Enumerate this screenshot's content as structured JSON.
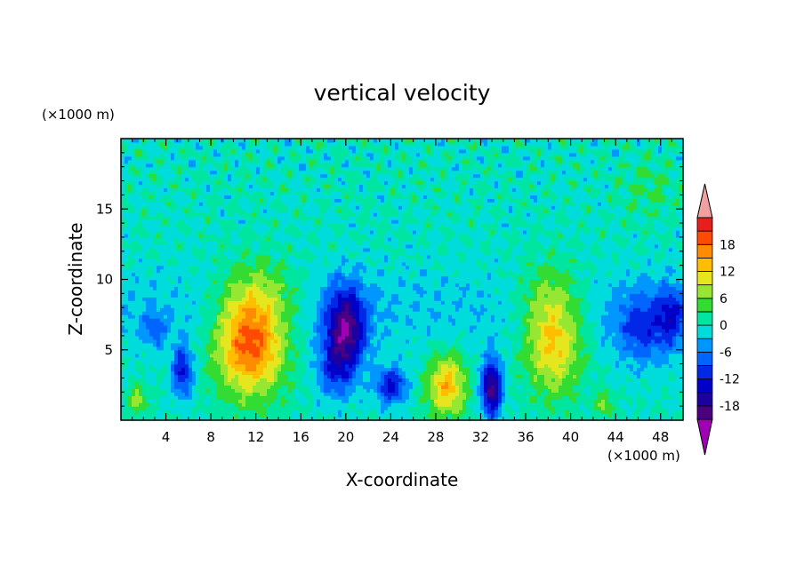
{
  "chart_data": {
    "type": "heatmap",
    "title": "vertical velocity",
    "xlabel": "X-coordinate",
    "ylabel": "Z-coordinate",
    "x_unit": "(×1000 m)",
    "y_unit": "(×1000 m)",
    "xlim": [
      0,
      50
    ],
    "ylim": [
      0,
      20
    ],
    "x_ticks": [
      4,
      8,
      12,
      16,
      20,
      24,
      28,
      32,
      36,
      40,
      44,
      48
    ],
    "y_ticks": [
      5,
      10,
      15
    ],
    "colorbar": {
      "levels": [
        -21,
        -18,
        -15,
        -12,
        -9,
        -6,
        -3,
        0,
        3,
        6,
        9,
        12,
        15,
        18,
        21
      ],
      "tick_labels": [
        -18,
        -12,
        -6,
        0,
        6,
        12,
        18
      ],
      "colors": [
        "#4b0082",
        "#1c00a0",
        "#0000c8",
        "#0028e6",
        "#0064ff",
        "#0096ff",
        "#00dcdc",
        "#00e6a0",
        "#32dc32",
        "#96e632",
        "#e6e61e",
        "#ffbe00",
        "#ff8c00",
        "#ff4b00",
        "#e61e1e"
      ],
      "over_color": "#f0a0a0",
      "under_color": "#a000b4",
      "extends": "both"
    },
    "features": [
      {
        "x": 11.5,
        "z": 5.5,
        "sx": 3.0,
        "sz": 3.5,
        "w": 20
      },
      {
        "x": 12.5,
        "z": 9.0,
        "sx": 3.5,
        "sz": 2.5,
        "w": 6
      },
      {
        "x": 20.0,
        "z": 6.5,
        "sx": 1.8,
        "sz": 3.0,
        "w": -19
      },
      {
        "x": 19.0,
        "z": 3.5,
        "sx": 1.5,
        "sz": 2.0,
        "w": -8
      },
      {
        "x": 24.0,
        "z": 2.5,
        "sx": 1.4,
        "sz": 1.3,
        "w": -13
      },
      {
        "x": 29.0,
        "z": 2.5,
        "sx": 1.7,
        "sz": 2.2,
        "w": 14
      },
      {
        "x": 33.0,
        "z": 2.3,
        "sx": 0.9,
        "sz": 2.0,
        "w": -20
      },
      {
        "x": 38.5,
        "z": 5.5,
        "sx": 2.5,
        "sz": 3.5,
        "w": 13
      },
      {
        "x": 38.0,
        "z": 9.0,
        "sx": 3.0,
        "sz": 2.5,
        "w": 5
      },
      {
        "x": 5.5,
        "z": 3.5,
        "sx": 0.9,
        "sz": 1.8,
        "w": -13
      },
      {
        "x": 46.5,
        "z": 6.5,
        "sx": 2.5,
        "sz": 2.5,
        "w": -9
      },
      {
        "x": 49.0,
        "z": 7.5,
        "sx": 1.2,
        "sz": 2.0,
        "w": -9
      },
      {
        "x": 1.5,
        "z": 1.5,
        "sx": 0.8,
        "sz": 1.0,
        "w": 8
      },
      {
        "x": 43.0,
        "z": 1.2,
        "sx": 0.8,
        "sz": 0.9,
        "w": 7
      },
      {
        "x": 3.0,
        "z": 6.5,
        "sx": 1.0,
        "sz": 1.2,
        "w": -7
      },
      {
        "x": 47.0,
        "z": 16.5,
        "sx": 2.5,
        "sz": 2.0,
        "w": 3
      }
    ]
  }
}
